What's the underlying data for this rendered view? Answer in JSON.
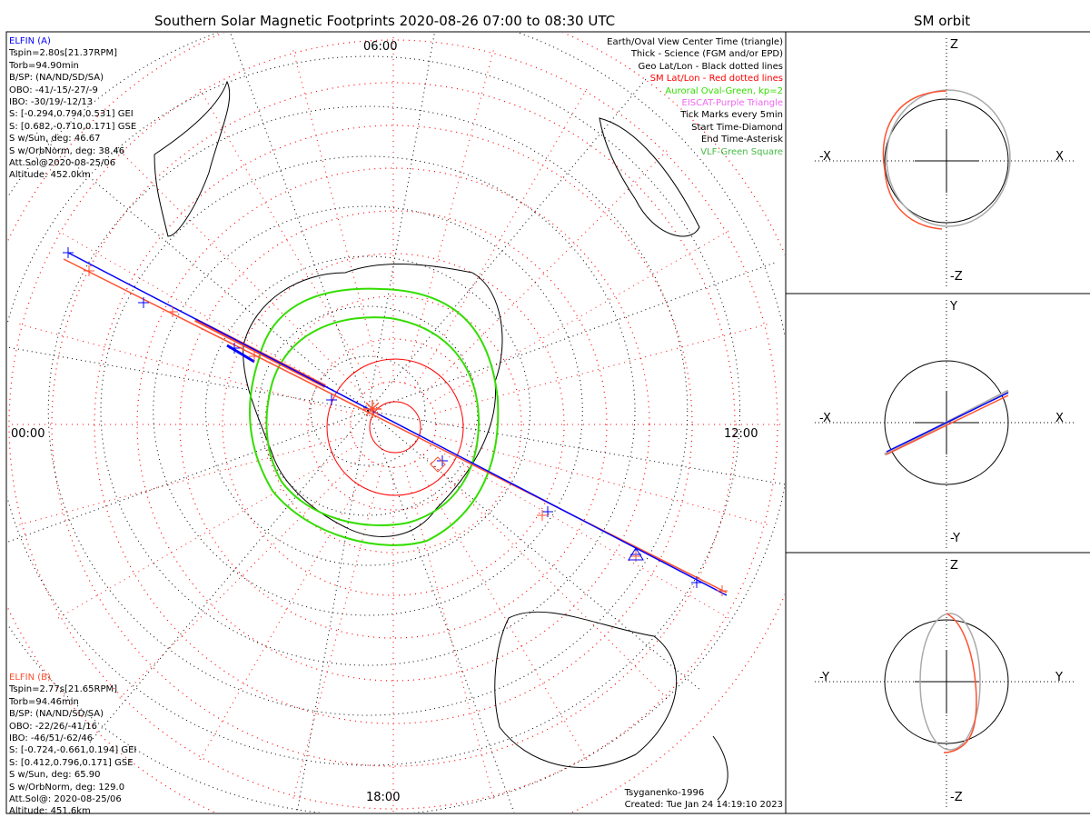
{
  "main_title": "Southern Solar Magnetic Footprints 2020-08-26 07:00 to 08:30 UTC",
  "orbit_title": "SM orbit",
  "mlt_labels": {
    "top": "06:00",
    "left": "00:00",
    "right": "12:00",
    "bottom": "18:00"
  },
  "elfin_a": {
    "name": "ELFIN (A)",
    "color": "#0000ff",
    "lines": [
      "Tspin=2.80s[21.37RPM]",
      "Torb=94.90min",
      "B/SP: (NA/ND/SD/SA)",
      "OBO: -41/-15/-27/-9",
      "IBO: -30/19/-12/13",
      "S: [-0.294,0.794,0.531] GEI",
      "S: [0.682,-0.710,0.171] GSE",
      "S w/Sun, deg: 46.67",
      "S w/OrbNorm, deg: 38.46",
      "Att.Sol@2020-08-25/06",
      "Altitude: 452.0km"
    ]
  },
  "elfin_b": {
    "name": "ELFIN (B)",
    "color": "#ff5030",
    "lines": [
      "Tspin=2.77s[21.65RPM]",
      "Torb=94.46min",
      "B/SP: (NA/ND/SD/SA)",
      "OBO: -22/26/-41/16",
      "IBO: -46/51/-62/46",
      "S: [-0.724,-0.661,0.194] GEI",
      "S: [0.412,0.796,0.171] GSE",
      "S w/Sun, deg: 65.90",
      "S w/OrbNorm, deg: 129.0",
      "Att.Sol@: 2020-08-25/06",
      "Altitude: 451.6km"
    ]
  },
  "legend": [
    {
      "text": "Earth/Oval View Center Time (triangle)",
      "color": "#000000"
    },
    {
      "text": "Thick - Science (FGM and/or EPD)",
      "color": "#000000"
    },
    {
      "text": "Geo Lat/Lon - Black dotted lines",
      "color": "#000000"
    },
    {
      "text": "SM Lat/Lon - Red dotted lines",
      "color": "#ff0000"
    },
    {
      "text": "Auroral Oval-Green, kp=2",
      "color": "#33dd00"
    },
    {
      "text": "EISCAT-Purple Triangle",
      "color": "#ee66ee"
    },
    {
      "text": "Tick Marks every 5min",
      "color": "#000000"
    },
    {
      "text": "Start Time-Diamond",
      "color": "#000000"
    },
    {
      "text": "End Time-Asterisk",
      "color": "#000000"
    },
    {
      "text": "VLF-Green Square",
      "color": "#44bb44"
    }
  ],
  "footer": {
    "model": "Tsyganenko-1996",
    "created": "Created: Tue Jan 24 14:19:10 2023"
  },
  "orbit_panels": [
    {
      "top": "Z",
      "bottom": "-Z",
      "left": "-X",
      "right": "X"
    },
    {
      "top": "Y",
      "bottom": "-Y",
      "left": "-X",
      "right": "X"
    },
    {
      "top": "Z",
      "bottom": "-Z",
      "left": "-Y",
      "right": "Y"
    }
  ],
  "chart_data": {
    "type": "scatter",
    "title": "Southern Solar Magnetic Footprints 2020-08-26 07:00 to 08:30 UTC",
    "projection": "polar, southern hemisphere, SM coordinates",
    "series": [
      {
        "name": "ELFIN (A)",
        "color": "#0000ff"
      },
      {
        "name": "ELFIN (B)",
        "color": "#ff5030"
      },
      {
        "name": "Auroral Oval kp=2",
        "color": "#33dd00"
      }
    ]
  }
}
